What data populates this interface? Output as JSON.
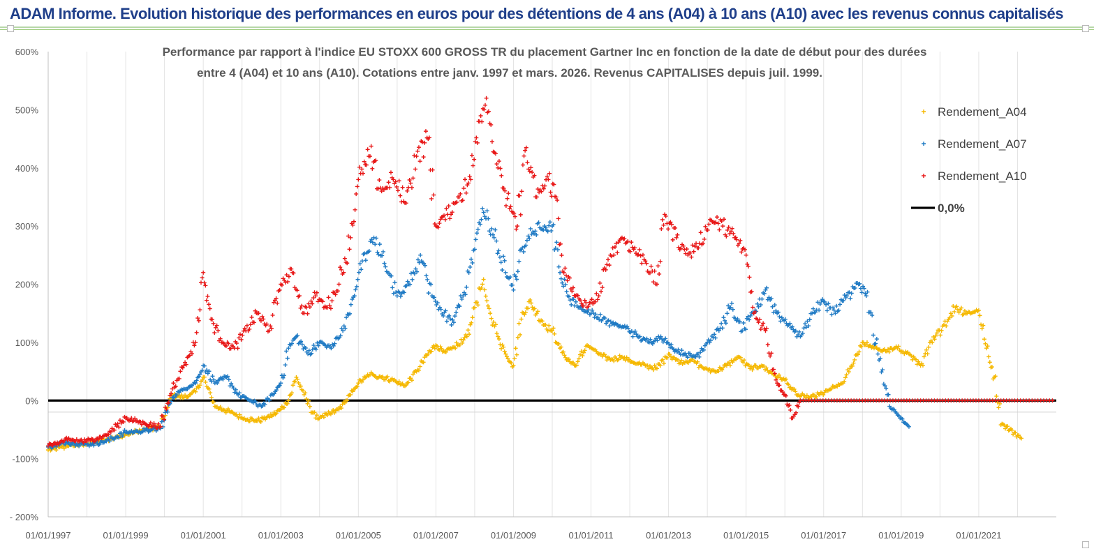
{
  "banner": {
    "title": "ADAM Informe. Evolution historique des performances en euros pour des détentions de 4 ans (A04) à 10 ans (A10) avec les revenus connus capitalisés"
  },
  "chart_data": {
    "type": "scatter",
    "title_line1": "Performance par rapport à l'indice EU STOXX 600 GROSS TR  du placement Gartner Inc en fonction de la date de début pour des durées",
    "title_line2": "entre 4 (A04) et 10 ans (A10). Cotations entre janv. 1997 et mars. 2026. Revenus CAPITALISES depuis juil. 1999.",
    "y_ticks": [
      "600%",
      "500%",
      "400%",
      "300%",
      "200%",
      "100%",
      "0%",
      "-100%",
      "- 200%"
    ],
    "y_tick_values": [
      600,
      500,
      400,
      300,
      200,
      100,
      0,
      -100,
      -200
    ],
    "ylim": [
      -200,
      600
    ],
    "x_ticks": [
      "01/01/1997",
      "01/01/1999",
      "01/01/2001",
      "01/01/2003",
      "01/01/2005",
      "01/01/2007",
      "01/01/2009",
      "01/01/2011",
      "01/01/2013",
      "01/01/2015",
      "01/01/2017",
      "01/01/2019",
      "01/01/2021"
    ],
    "xlim": [
      "01/01/1997",
      "01/01/2023"
    ],
    "grid": "vertical",
    "legend_position": "top-right",
    "reference_line": {
      "name": "0,0%",
      "value": 0,
      "color": "#000000"
    },
    "series": [
      {
        "name": "Rendement_A04",
        "color": "#f5b800",
        "marker": "+",
        "points": [
          [
            1997.0,
            -85
          ],
          [
            1997.5,
            -78
          ],
          [
            1998.0,
            -75
          ],
          [
            1998.5,
            -68
          ],
          [
            1999.0,
            -58
          ],
          [
            1999.5,
            -50
          ],
          [
            1999.9,
            -45
          ],
          [
            2000.2,
            10
          ],
          [
            2000.5,
            5
          ],
          [
            2000.8,
            15
          ],
          [
            2001.0,
            40
          ],
          [
            2001.3,
            -10
          ],
          [
            2001.7,
            -20
          ],
          [
            2002.0,
            -30
          ],
          [
            2002.4,
            -35
          ],
          [
            2002.8,
            -25
          ],
          [
            2003.0,
            -15
          ],
          [
            2003.2,
            0
          ],
          [
            2003.4,
            40
          ],
          [
            2003.6,
            10
          ],
          [
            2003.9,
            -30
          ],
          [
            2004.2,
            -25
          ],
          [
            2004.5,
            -15
          ],
          [
            2004.8,
            10
          ],
          [
            2005.0,
            30
          ],
          [
            2005.3,
            45
          ],
          [
            2005.6,
            40
          ],
          [
            2005.9,
            35
          ],
          [
            2006.2,
            25
          ],
          [
            2006.5,
            50
          ],
          [
            2006.8,
            80
          ],
          [
            2007.0,
            95
          ],
          [
            2007.2,
            85
          ],
          [
            2007.5,
            90
          ],
          [
            2007.8,
            110
          ],
          [
            2008.0,
            160
          ],
          [
            2008.2,
            200
          ],
          [
            2008.4,
            150
          ],
          [
            2008.6,
            110
          ],
          [
            2008.8,
            80
          ],
          [
            2009.0,
            60
          ],
          [
            2009.2,
            140
          ],
          [
            2009.4,
            170
          ],
          [
            2009.6,
            150
          ],
          [
            2009.8,
            130
          ],
          [
            2010.0,
            120
          ],
          [
            2010.2,
            90
          ],
          [
            2010.4,
            70
          ],
          [
            2010.6,
            60
          ],
          [
            2010.9,
            95
          ],
          [
            2011.2,
            80
          ],
          [
            2011.5,
            70
          ],
          [
            2011.8,
            75
          ],
          [
            2012.1,
            65
          ],
          [
            2012.4,
            60
          ],
          [
            2012.7,
            55
          ],
          [
            2013.0,
            80
          ],
          [
            2013.3,
            65
          ],
          [
            2013.6,
            70
          ],
          [
            2013.9,
            55
          ],
          [
            2014.2,
            50
          ],
          [
            2014.5,
            60
          ],
          [
            2014.8,
            75
          ],
          [
            2015.1,
            55
          ],
          [
            2015.4,
            60
          ],
          [
            2015.7,
            45
          ],
          [
            2016.0,
            35
          ],
          [
            2016.3,
            10
          ],
          [
            2016.6,
            5
          ],
          [
            2016.9,
            10
          ],
          [
            2017.2,
            20
          ],
          [
            2017.5,
            30
          ],
          [
            2017.8,
            70
          ],
          [
            2018.0,
            100
          ],
          [
            2018.3,
            90
          ],
          [
            2018.6,
            85
          ],
          [
            2018.9,
            90
          ],
          [
            2019.2,
            80
          ],
          [
            2019.5,
            60
          ],
          [
            2019.8,
            100
          ],
          [
            2020.1,
            130
          ],
          [
            2020.4,
            160
          ],
          [
            2020.7,
            150
          ],
          [
            2021.0,
            155
          ],
          [
            2021.2,
            90
          ],
          [
            2021.4,
            40
          ],
          [
            2021.6,
            -40
          ],
          [
            2021.8,
            -50
          ],
          [
            2022.0,
            -60
          ],
          [
            2022.1,
            -65
          ]
        ]
      },
      {
        "name": "Rendement_A07",
        "color": "#1f7ac4",
        "marker": "+",
        "points": [
          [
            1997.0,
            -80
          ],
          [
            1997.5,
            -72
          ],
          [
            1998.0,
            -76
          ],
          [
            1998.5,
            -70
          ],
          [
            1999.0,
            -55
          ],
          [
            1999.5,
            -52
          ],
          [
            1999.9,
            -48
          ],
          [
            2000.2,
            5
          ],
          [
            2000.5,
            20
          ],
          [
            2000.8,
            30
          ],
          [
            2001.0,
            60
          ],
          [
            2001.3,
            30
          ],
          [
            2001.6,
            40
          ],
          [
            2001.9,
            10
          ],
          [
            2002.2,
            0
          ],
          [
            2002.5,
            -10
          ],
          [
            2002.8,
            10
          ],
          [
            2003.0,
            30
          ],
          [
            2003.2,
            90
          ],
          [
            2003.4,
            110
          ],
          [
            2003.7,
            80
          ],
          [
            2004.0,
            100
          ],
          [
            2004.3,
            90
          ],
          [
            2004.6,
            120
          ],
          [
            2004.9,
            180
          ],
          [
            2005.1,
            240
          ],
          [
            2005.4,
            280
          ],
          [
            2005.7,
            230
          ],
          [
            2006.0,
            180
          ],
          [
            2006.3,
            200
          ],
          [
            2006.6,
            250
          ],
          [
            2006.9,
            180
          ],
          [
            2007.1,
            160
          ],
          [
            2007.4,
            130
          ],
          [
            2007.7,
            180
          ],
          [
            2008.0,
            260
          ],
          [
            2008.2,
            330
          ],
          [
            2008.5,
            280
          ],
          [
            2008.8,
            220
          ],
          [
            2009.0,
            190
          ],
          [
            2009.2,
            260
          ],
          [
            2009.5,
            290
          ],
          [
            2009.8,
            300
          ],
          [
            2010.0,
            300
          ],
          [
            2010.2,
            220
          ],
          [
            2010.4,
            180
          ],
          [
            2010.7,
            160
          ],
          [
            2011.0,
            150
          ],
          [
            2011.3,
            140
          ],
          [
            2011.6,
            130
          ],
          [
            2011.9,
            125
          ],
          [
            2012.2,
            110
          ],
          [
            2012.5,
            100
          ],
          [
            2012.8,
            110
          ],
          [
            2013.1,
            90
          ],
          [
            2013.4,
            80
          ],
          [
            2013.7,
            75
          ],
          [
            2014.0,
            100
          ],
          [
            2014.3,
            120
          ],
          [
            2014.6,
            160
          ],
          [
            2014.9,
            120
          ],
          [
            2015.2,
            150
          ],
          [
            2015.5,
            190
          ],
          [
            2015.8,
            150
          ],
          [
            2016.1,
            130
          ],
          [
            2016.4,
            110
          ],
          [
            2016.7,
            150
          ],
          [
            2017.0,
            170
          ],
          [
            2017.3,
            150
          ],
          [
            2017.6,
            180
          ],
          [
            2017.9,
            200
          ],
          [
            2018.1,
            180
          ],
          [
            2018.4,
            80
          ],
          [
            2018.7,
            -10
          ],
          [
            2019.0,
            -30
          ],
          [
            2019.2,
            -45
          ]
        ]
      },
      {
        "name": "Rendement_A10",
        "color": "#e81717",
        "marker": "+",
        "points": [
          [
            1997.0,
            -78
          ],
          [
            1997.5,
            -68
          ],
          [
            1998.0,
            -70
          ],
          [
            1998.5,
            -60
          ],
          [
            1999.0,
            -30
          ],
          [
            1999.5,
            -40
          ],
          [
            1999.9,
            -45
          ],
          [
            2000.2,
            20
          ],
          [
            2000.5,
            60
          ],
          [
            2000.8,
            100
          ],
          [
            2001.0,
            220
          ],
          [
            2001.2,
            140
          ],
          [
            2001.5,
            100
          ],
          [
            2001.8,
            90
          ],
          [
            2002.1,
            120
          ],
          [
            2002.4,
            150
          ],
          [
            2002.7,
            120
          ],
          [
            2003.0,
            200
          ],
          [
            2003.3,
            220
          ],
          [
            2003.6,
            150
          ],
          [
            2003.9,
            180
          ],
          [
            2004.2,
            160
          ],
          [
            2004.5,
            200
          ],
          [
            2004.8,
            280
          ],
          [
            2005.0,
            380
          ],
          [
            2005.3,
            420
          ],
          [
            2005.6,
            360
          ],
          [
            2005.9,
            380
          ],
          [
            2006.2,
            340
          ],
          [
            2006.5,
            420
          ],
          [
            2006.8,
            450
          ],
          [
            2007.0,
            300
          ],
          [
            2007.3,
            320
          ],
          [
            2007.6,
            350
          ],
          [
            2007.9,
            380
          ],
          [
            2008.1,
            480
          ],
          [
            2008.3,
            520
          ],
          [
            2008.6,
            400
          ],
          [
            2008.9,
            330
          ],
          [
            2009.1,
            300
          ],
          [
            2009.3,
            430
          ],
          [
            2009.6,
            350
          ],
          [
            2009.9,
            380
          ],
          [
            2010.1,
            350
          ],
          [
            2010.3,
            220
          ],
          [
            2010.6,
            180
          ],
          [
            2010.9,
            160
          ],
          [
            2011.2,
            180
          ],
          [
            2011.5,
            250
          ],
          [
            2011.8,
            280
          ],
          [
            2012.1,
            260
          ],
          [
            2012.4,
            240
          ],
          [
            2012.7,
            200
          ],
          [
            2012.9,
            320
          ],
          [
            2013.2,
            280
          ],
          [
            2013.5,
            250
          ],
          [
            2013.8,
            270
          ],
          [
            2014.1,
            310
          ],
          [
            2014.4,
            300
          ],
          [
            2014.7,
            280
          ],
          [
            2015.0,
            250
          ],
          [
            2015.2,
            150
          ],
          [
            2015.5,
            120
          ],
          [
            2015.8,
            30
          ],
          [
            2016.0,
            10
          ],
          [
            2016.2,
            -30
          ],
          [
            2016.4,
            0
          ],
          [
            2018.0,
            0
          ],
          [
            2020.0,
            0
          ],
          [
            2022.0,
            0
          ],
          [
            2022.9,
            0
          ]
        ]
      }
    ]
  }
}
